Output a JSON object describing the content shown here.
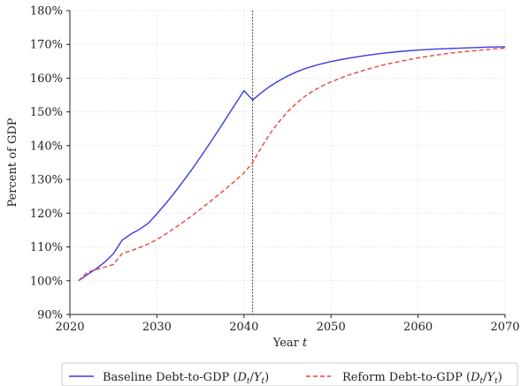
{
  "chart_data": {
    "type": "line",
    "title": "",
    "xlabel": "Year t",
    "ylabel": "Percent of GDP",
    "xlim": [
      2020,
      2070
    ],
    "ylim": [
      90,
      180
    ],
    "x_ticks": [
      2020,
      2030,
      2040,
      2050,
      2060,
      2070
    ],
    "x_tick_labels": [
      "2020",
      "2030",
      "2040",
      "2050",
      "2060",
      "2070"
    ],
    "y_ticks": [
      90,
      100,
      110,
      120,
      130,
      140,
      150,
      160,
      170,
      180
    ],
    "y_tick_labels": [
      "90%",
      "100%",
      "110%",
      "120%",
      "130%",
      "140%",
      "150%",
      "160%",
      "170%",
      "180%"
    ],
    "grid": true,
    "legend_position": "bottom",
    "vline": {
      "x": 2041,
      "style": "dotted"
    },
    "series": [
      {
        "name": "Baseline Debt-to-GDP (D_t/Y_t)",
        "legend_label": "Baseline Debt-to-GDP (",
        "legend_math": "Dt/Yt",
        "color": "#3a3ae0",
        "style": "solid",
        "points": [
          [
            2021,
            100.0
          ],
          [
            2022,
            101.8
          ],
          [
            2023,
            103.5
          ],
          [
            2024,
            105.5
          ],
          [
            2025,
            108.0
          ],
          [
            2026,
            112.0
          ],
          [
            2027,
            113.8
          ],
          [
            2028,
            115.2
          ],
          [
            2029,
            117.0
          ],
          [
            2030,
            119.8
          ],
          [
            2031,
            122.8
          ],
          [
            2032,
            126.0
          ],
          [
            2033,
            129.4
          ],
          [
            2034,
            132.9
          ],
          [
            2035,
            136.6
          ],
          [
            2036,
            140.4
          ],
          [
            2037,
            144.3
          ],
          [
            2038,
            148.3
          ],
          [
            2039,
            152.3
          ],
          [
            2040,
            156.3
          ],
          [
            2041,
            153.5
          ],
          [
            2042,
            155.7
          ],
          [
            2043,
            157.6
          ],
          [
            2044,
            159.2
          ],
          [
            2045,
            160.6
          ],
          [
            2046,
            161.8
          ],
          [
            2047,
            162.8
          ],
          [
            2048,
            163.6
          ],
          [
            2049,
            164.3
          ],
          [
            2050,
            164.9
          ],
          [
            2052,
            165.9
          ],
          [
            2054,
            166.7
          ],
          [
            2056,
            167.4
          ],
          [
            2058,
            167.9
          ],
          [
            2060,
            168.3
          ],
          [
            2062,
            168.6
          ],
          [
            2064,
            168.8
          ],
          [
            2066,
            169.0
          ],
          [
            2068,
            169.2
          ],
          [
            2070,
            169.3
          ]
        ]
      },
      {
        "name": "Reform Debt-to-GDP (D_t/Y_t)",
        "legend_label": "Reform Debt-to-GDP (",
        "legend_math": "Dt/Yt",
        "color": "#e8453c",
        "style": "dashed",
        "points": [
          [
            2021,
            100.0
          ],
          [
            2022,
            102.5
          ],
          [
            2023,
            103.3
          ],
          [
            2024,
            104.0
          ],
          [
            2025,
            104.8
          ],
          [
            2026,
            108.0
          ],
          [
            2027,
            108.9
          ],
          [
            2028,
            109.8
          ],
          [
            2029,
            110.9
          ],
          [
            2030,
            112.2
          ],
          [
            2031,
            113.8
          ],
          [
            2032,
            115.5
          ],
          [
            2033,
            117.3
          ],
          [
            2034,
            119.2
          ],
          [
            2035,
            121.2
          ],
          [
            2036,
            123.2
          ],
          [
            2037,
            125.3
          ],
          [
            2038,
            127.4
          ],
          [
            2039,
            129.6
          ],
          [
            2040,
            131.9
          ],
          [
            2041,
            135.0
          ],
          [
            2042,
            139.5
          ],
          [
            2043,
            143.6
          ],
          [
            2044,
            147.0
          ],
          [
            2045,
            150.0
          ],
          [
            2046,
            152.5
          ],
          [
            2047,
            154.6
          ],
          [
            2048,
            156.3
          ],
          [
            2049,
            157.7
          ],
          [
            2050,
            158.9
          ],
          [
            2052,
            160.9
          ],
          [
            2054,
            162.5
          ],
          [
            2056,
            163.9
          ],
          [
            2058,
            165.0
          ],
          [
            2060,
            166.0
          ],
          [
            2062,
            166.8
          ],
          [
            2064,
            167.5
          ],
          [
            2066,
            168.0
          ],
          [
            2068,
            168.5
          ],
          [
            2070,
            168.9
          ]
        ]
      }
    ]
  }
}
